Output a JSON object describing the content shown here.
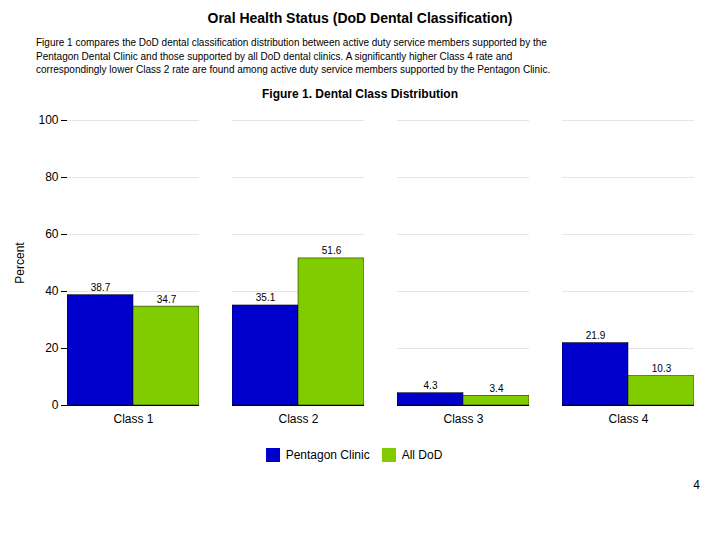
{
  "chart_data": {
    "type": "bar",
    "title": "Oral Health Status (DoD Dental Classification)",
    "subtitle": "Figure 1.  Dental Class Distribution",
    "annotations": [
      "Figure 1 compares the DoD dental classification distribution between active duty service members supported by the\nPentagon Dental Clinic and those supported by all DoD dental clinics.  A significantly higher Class 4 rate and\ncorrespondingly lower Class 2 rate are found among active duty service members supported by the Pentagon Clinic.",
      "4"
    ],
    "categories": [
      "Class 1",
      "Class 2",
      "Class 3",
      "Class 4"
    ],
    "series": [
      {
        "name": "Pentagon Clinic",
        "color": "#0000CC",
        "values": [
          38.7,
          35.1,
          4.3,
          21.9
        ]
      },
      {
        "name": "All DoD",
        "color": "#80CC00",
        "values": [
          34.7,
          51.6,
          3.4,
          10.3
        ]
      }
    ],
    "ylabel": "Percent",
    "ylim": [
      0,
      100
    ],
    "yticks": [
      0,
      20,
      40,
      60,
      80,
      100
    ],
    "grid": true,
    "legend": "bottom",
    "data_labels": true
  }
}
